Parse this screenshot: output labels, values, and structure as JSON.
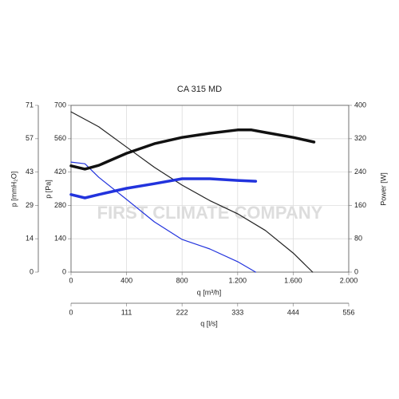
{
  "chart_data": {
    "type": "line",
    "title": "CA 315 MD",
    "xlabel": "q [m³/h]",
    "ylabel": "p [Pa]",
    "y2label": "Power [W]",
    "xlim": [
      0,
      2000
    ],
    "xticks": [
      0,
      400,
      800,
      {
        "value": 1200,
        "label": "1.200"
      },
      {
        "value": 1600,
        "label": "1.600"
      },
      {
        "value": 2000,
        "label": "2.000"
      }
    ],
    "ylim": [
      0,
      700
    ],
    "yticks": [
      0,
      140,
      280,
      420,
      560,
      700
    ],
    "y2lim": [
      0,
      400
    ],
    "y2ticks": [
      0,
      80,
      160,
      240,
      320,
      400
    ],
    "y3label": "p [mmH₂O]",
    "y3lim": [
      0,
      71.4
    ],
    "y3ticks": [
      0,
      {
        "value": 14.28,
        "label": "14"
      },
      {
        "value": 28.56,
        "label": "29"
      },
      {
        "value": 42.84,
        "label": "43"
      },
      {
        "value": 57.12,
        "label": "57"
      },
      {
        "value": 71.4,
        "label": "71"
      }
    ],
    "x2label": "q [l/s]",
    "x2lim": [
      0,
      555.6
    ],
    "x2ticks": [
      0,
      {
        "value": 111.1,
        "label": "111"
      },
      {
        "value": 222.2,
        "label": "222"
      },
      {
        "value": 333.3,
        "label": "333"
      },
      {
        "value": 444.4,
        "label": "444"
      },
      {
        "value": 555.6,
        "label": "556"
      }
    ],
    "grid": true,
    "watermark": "FIRST CLIMATE COMPANY",
    "series": [
      {
        "color": "#222222",
        "width": 1.2,
        "axis": "y",
        "x": [
          0,
          200,
          400,
          600,
          800,
          1000,
          1200,
          1400,
          1600,
          1740
        ],
        "values": [
          673,
          610,
          525,
          440,
          365,
          300,
          245,
          175,
          80,
          0
        ]
      },
      {
        "color": "#2233dd",
        "width": 1.2,
        "axis": "y",
        "x": [
          0,
          100,
          200,
          400,
          600,
          800,
          1000,
          1200,
          1330
        ],
        "values": [
          462,
          455,
          398,
          305,
          211,
          137,
          97,
          44,
          0
        ]
      },
      {
        "color": "#111111",
        "width": 3.5,
        "axis": "y2",
        "x": [
          0,
          100,
          200,
          400,
          600,
          800,
          1000,
          1200,
          1300,
          1400,
          1600,
          1750
        ],
        "values": [
          255,
          247,
          256,
          285,
          308,
          323,
          333,
          341,
          341,
          335,
          323,
          312
        ]
      },
      {
        "color": "#2233dd",
        "width": 3.5,
        "axis": "y2",
        "x": [
          0,
          100,
          200,
          400,
          600,
          800,
          1000,
          1200,
          1330
        ],
        "values": [
          186,
          178,
          186,
          201,
          212,
          224,
          224,
          220,
          218
        ]
      }
    ]
  }
}
